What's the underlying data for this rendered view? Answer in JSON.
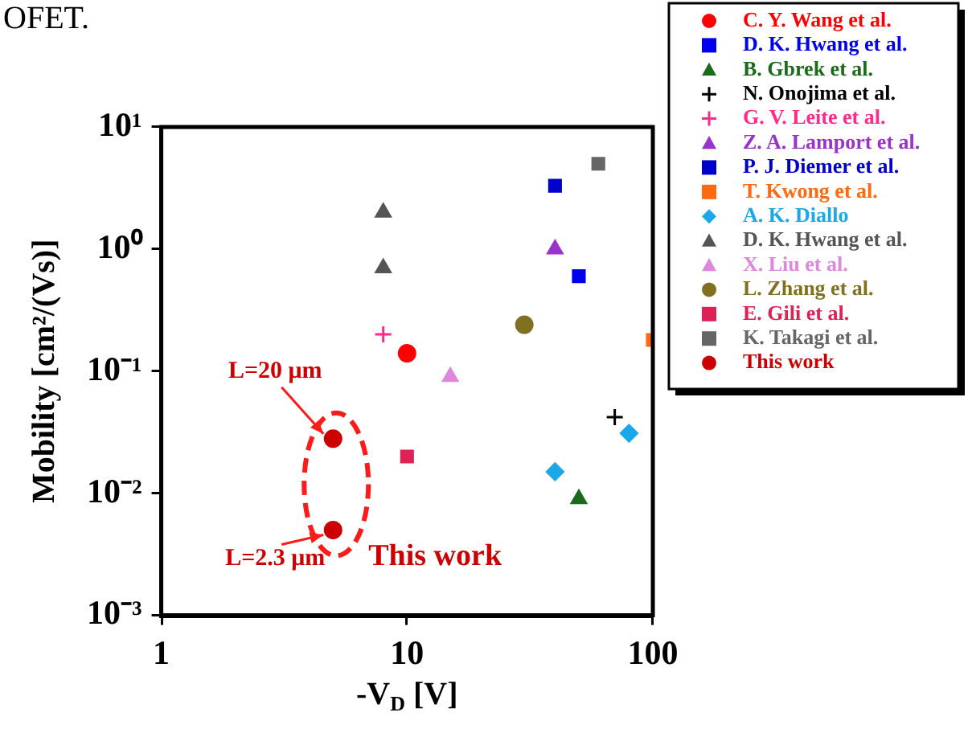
{
  "chart_data": {
    "type": "scatter",
    "xlabel": "-V$_{D}$ [V]",
    "ylabel": "Mobility [cm²/(Vs)]",
    "log": "xy",
    "xlim": [
      1,
      100
    ],
    "ylim": [
      0.001,
      10
    ],
    "xticks": [
      1,
      10,
      100
    ],
    "yticks": [
      {
        "value": 0.001,
        "label": "10⁻³"
      },
      {
        "value": 0.01,
        "label": "10⁻²"
      },
      {
        "value": 0.1,
        "label": "10⁻¹"
      },
      {
        "value": 1,
        "label": "10⁰"
      },
      {
        "value": 10,
        "label": "10¹"
      }
    ],
    "grid": false,
    "legend": "top right",
    "annotations": [
      "OFET.",
      {
        "text": "L=20 μm",
        "x": 5,
        "y": 0.028
      },
      {
        "text": "L=2.3 μm",
        "x": 5,
        "y": 0.005
      },
      "This work"
    ],
    "series": [
      {
        "name": "C. Y. Wang et al.",
        "color": "#ff0000",
        "marker": "circle",
        "x": [
          10
        ],
        "values": [
          0.14
        ]
      },
      {
        "name": "D. K. Hwang et al.",
        "color": "#0000ee",
        "marker": "square",
        "x": [
          50
        ],
        "values": [
          0.6
        ]
      },
      {
        "name": "B. Gbrek et al.",
        "color": "#1a6b1a",
        "marker": "triangle",
        "x": [
          50
        ],
        "values": [
          0.009
        ]
      },
      {
        "name": "N. Onojima et al.",
        "color": "#000000",
        "marker": "cross",
        "x": [
          70
        ],
        "values": [
          0.042
        ]
      },
      {
        "name": "G. V. Leite et al.",
        "color": "#ff2a8a",
        "marker": "cross",
        "x": [
          8
        ],
        "values": [
          0.2
        ]
      },
      {
        "name": "Z. A. Lamport et al.",
        "color": "#9933cc",
        "marker": "triangle",
        "x": [
          40
        ],
        "values": [
          1
        ]
      },
      {
        "name": "P. J. Diemer et al.",
        "color": "#0000cc",
        "marker": "square",
        "x": [
          40
        ],
        "values": [
          3.3
        ]
      },
      {
        "name": "T. Kwong et al.",
        "color": "#ff6a10",
        "marker": "square",
        "x": [
          100
        ],
        "values": [
          0.18
        ]
      },
      {
        "name": "A. K. Diallo",
        "color": "#1aa8e8",
        "marker": "diamond",
        "x": [
          40,
          80
        ],
        "values": [
          0.015,
          0.031
        ]
      },
      {
        "name": "D. K. Hwang et al.",
        "color": "#555555",
        "marker": "triangle",
        "x": [
          8,
          8
        ],
        "values": [
          2,
          0.7
        ]
      },
      {
        "name": "X. Liu et al.",
        "color": "#dd88dd",
        "marker": "triangle",
        "x": [
          15
        ],
        "values": [
          0.09
        ]
      },
      {
        "name": "L. Zhang et al.",
        "color": "#807020",
        "marker": "circle",
        "x": [
          30
        ],
        "values": [
          0.24
        ]
      },
      {
        "name": "E. Gili et al.",
        "color": "#dd2255",
        "marker": "square",
        "x": [
          10
        ],
        "values": [
          0.02
        ]
      },
      {
        "name": "K. Takagi et al.",
        "color": "#666666",
        "marker": "square",
        "x": [
          60
        ],
        "values": [
          5
        ]
      },
      {
        "name": "This work",
        "color": "#cc0000",
        "marker": "circle",
        "x": [
          5,
          5
        ],
        "values": [
          0.028,
          0.005
        ]
      }
    ]
  }
}
